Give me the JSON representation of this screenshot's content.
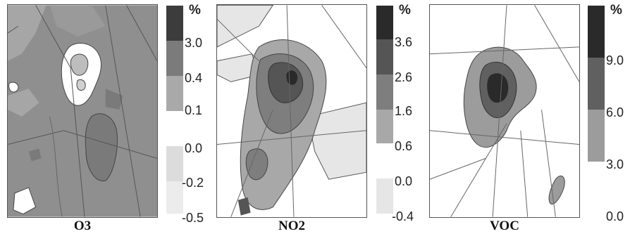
{
  "panels": [
    {
      "title": "O3",
      "unit": "%",
      "legend_ticks": [
        "3.0",
        "0.4",
        "0.1",
        "0.0",
        "-0.2",
        "-0.5"
      ],
      "legend_colors": [
        "#3c3c3c",
        "#7b7b7b",
        "#a9a9a9",
        "#ffffff",
        "#dcdcdc",
        "#ececec"
      ]
    },
    {
      "title": "NO2",
      "unit": "%",
      "legend_ticks": [
        "3.6",
        "2.6",
        "1.6",
        "0.6",
        "0.0",
        "-0.4"
      ],
      "legend_colors": [
        "#2a2a2a",
        "#555555",
        "#7e7e7e",
        "#a8a8a8",
        "#ffffff",
        "#e6e6e6"
      ]
    },
    {
      "title": "VOC",
      "unit": "%",
      "legend_ticks": [
        "9.0",
        "6.0",
        "3.0",
        "0.0"
      ],
      "legend_colors": [
        "#2a2a2a",
        "#606060",
        "#9c9c9c",
        "#ffffff"
      ]
    }
  ]
}
